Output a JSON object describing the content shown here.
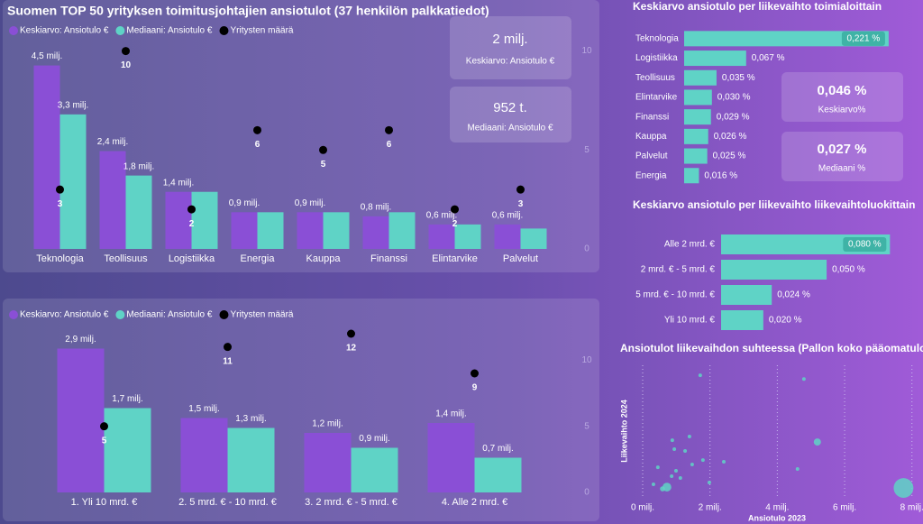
{
  "chart_data": [
    {
      "type": "combo",
      "title": "Suomen TOP 50 yrityksen toimitusjohtajien ansiotulot (37 henkilön palkkatiedot)",
      "categories": [
        "Teknologia",
        "Teollisuus",
        "Logistiikka",
        "Energia",
        "Kauppa",
        "Finanssi",
        "Elintarvike",
        "Palvelut"
      ],
      "series": [
        {
          "name": "Keskiarvo: Ansiotulo €",
          "color": "#8a4fd6",
          "values": [
            4500000,
            2400000,
            1400000,
            900000,
            900000,
            800000,
            600000,
            600000
          ],
          "value_labels": [
            "4,5 milj.",
            "2,4 milj.",
            "1,4 milj.",
            "0,9 milj.",
            "0,9 milj.",
            "0,8 milj.",
            "0,6 milj.",
            "0,6 milj."
          ]
        },
        {
          "name": "Mediaani: Ansiotulo €",
          "color": "#5fd3c6",
          "values": [
            3300000,
            1800000,
            1400000,
            900000,
            900000,
            900000,
            600000,
            500000
          ],
          "value_labels": [
            "3,3 milj.",
            "1,8 milj.",
            null,
            null,
            null,
            null,
            null,
            null
          ]
        },
        {
          "name": "Yritysten määrä",
          "color": "#000000",
          "axis": "y2",
          "values": [
            3,
            10,
            2,
            6,
            5,
            6,
            2,
            3
          ]
        }
      ],
      "ylim": [
        0,
        5000000
      ],
      "y2lim": [
        0,
        10.3
      ],
      "y2ticks": [
        0,
        5,
        10
      ]
    },
    {
      "type": "combo",
      "categories": [
        "1. Yli 10 mrd. €",
        "2. 5 mrd. € - 10 mrd. €",
        "3. 2 mrd. € - 5 mrd. €",
        "4. Alle 2 mrd. €"
      ],
      "series": [
        {
          "name": "Keskiarvo: Ansiotulo €",
          "color": "#8a4fd6",
          "values": [
            2900000,
            1500000,
            1200000,
            1400000
          ],
          "value_labels": [
            "2,9 milj.",
            "1,5 milj.",
            "1,2 milj.",
            "1,4 milj."
          ]
        },
        {
          "name": "Mediaani: Ansiotulo €",
          "color": "#5fd3c6",
          "values": [
            1700000,
            1300000,
            900000,
            700000
          ],
          "value_labels": [
            "1,7 milj.",
            "1,3 milj.",
            "0,9 milj.",
            "0,7 milj."
          ]
        },
        {
          "name": "Yritysten määrä",
          "color": "#000000",
          "axis": "y2",
          "values": [
            5,
            11,
            12,
            9
          ]
        }
      ],
      "ylim": [
        0,
        3200000
      ],
      "y2lim": [
        0,
        12
      ],
      "y2ticks": [
        0,
        5,
        10
      ]
    },
    {
      "type": "hbar",
      "title": "Keskiarvo ansiotulo per liikevaihto toimialoittain",
      "categories": [
        "Teknologia",
        "Logistiikka",
        "Teollisuus",
        "Elintarvike",
        "Finanssi",
        "Kauppa",
        "Palvelut",
        "Energia"
      ],
      "values": [
        0.221,
        0.067,
        0.035,
        0.03,
        0.029,
        0.026,
        0.025,
        0.016
      ],
      "value_labels": [
        "0,221 %",
        "0,067 %",
        "0,035 %",
        "0,030 %",
        "0,029 %",
        "0,026 %",
        "0,025 %",
        "0,016 %"
      ],
      "color": "#5fd3c6",
      "xlim": [
        0,
        0.225
      ]
    },
    {
      "type": "hbar",
      "title": "Keskiarvo ansiotulo per liikevaihto liikevaihtoluokittain",
      "categories": [
        "Alle 2 mrd. €",
        "2 mrd. € - 5 mrd. €",
        "5 mrd. € - 10 mrd. €",
        "Yli 10 mrd. €"
      ],
      "values": [
        0.08,
        0.05,
        0.024,
        0.02
      ],
      "value_labels": [
        "0,080 %",
        "0,050 %",
        "0,024 %",
        "0,020 %"
      ],
      "color": "#5fd3c6",
      "xlim": [
        0,
        0.082
      ]
    },
    {
      "type": "scatter",
      "title": "Ansiotulot liikevaihdon suhteessa (Pallon koko pääomatulo)",
      "xlabel": "Ansiotulo 2023",
      "ylabel": "Liikevaihto 2024",
      "color": "#5fd3c6",
      "grid": true,
      "x": [
        1710000,
        4790000,
        5190000,
        880000,
        940000,
        1390000,
        1260000,
        450000,
        860000,
        990000,
        1470000,
        1790000,
        1980000,
        2410000,
        4600000,
        720000,
        590000,
        320000,
        1120000,
        7750000
      ],
      "values": [
        55.4,
        53.7,
        24.8,
        25.6,
        21.5,
        27.3,
        20.7,
        13.2,
        9.1,
        11.6,
        14.5,
        16.5,
        6.2,
        15.7,
        12.4,
        4.1,
        3.3,
        5.4,
        8.3,
        3.7
      ],
      "sizes": [
        1,
        1,
        4,
        1,
        1,
        1,
        1,
        1,
        1,
        1,
        1,
        1,
        1,
        1,
        1,
        6,
        2,
        1,
        1,
        30
      ],
      "xlim": [
        0,
        7900000
      ],
      "ylim": [
        0,
        60
      ],
      "xticks": [
        {
          "value": 0,
          "label": "0 milj."
        },
        {
          "value": 2000000,
          "label": "2 milj."
        },
        {
          "value": 4000000,
          "label": "4 milj."
        },
        {
          "value": 6000000,
          "label": "6 milj."
        },
        {
          "value": 8000000,
          "label": "8 milj."
        }
      ]
    }
  ],
  "kpis": [
    {
      "value": "2 milj.",
      "label": "Keskiarvo: Ansiotulo €"
    },
    {
      "value": "952 t.",
      "label": "Mediaani: Ansiotulo €"
    },
    {
      "value": "0,046 %",
      "label": "Keskiarvo%"
    },
    {
      "value": "0,027 %",
      "label": "Mediaani %"
    }
  ]
}
